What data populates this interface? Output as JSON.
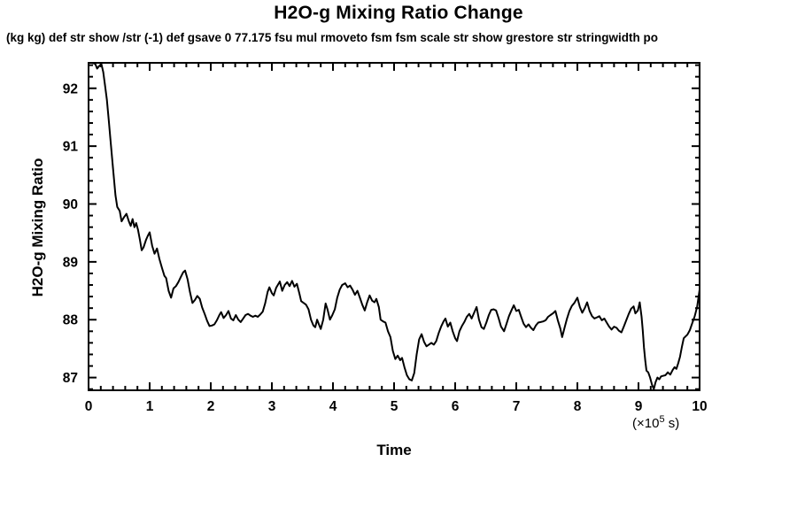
{
  "page": {
    "background": "#ffffff",
    "foreground": "#000000"
  },
  "header": {
    "title": "H2O-g Mixing Ratio Change",
    "subtitle": "(kg kg) def str show /str (-1) def gsave 0 77.175 fsu mul rmoveto fsm fsm scale str show grestore str stringwidth po"
  },
  "axes": {
    "y_title": "H2O-g Mixing Ratio",
    "x_title": "Time",
    "x_unit_prefix": "(×10",
    "x_unit_exponent": "5",
    "x_unit_suffix": " s)"
  },
  "chart_data": {
    "type": "line",
    "title": "H2O-g Mixing Ratio Change",
    "xlabel": "Time",
    "ylabel": "H2O-g Mixing Ratio",
    "x_unit": "(×10^5 s)",
    "xlim": [
      0,
      10
    ],
    "ylim": [
      86.78,
      92.44
    ],
    "x_major_ticks": [
      0,
      1,
      2,
      3,
      4,
      5,
      6,
      7,
      8,
      9,
      10
    ],
    "y_major_ticks": [
      87,
      88,
      89,
      90,
      91,
      92
    ],
    "x_minor_step": 0.2,
    "y_minor_step": 0.2,
    "grid": false,
    "legend": "none",
    "line_color": "#000000",
    "box_axes": true,
    "series": [
      {
        "name": "H2O-g mixing ratio",
        "x": [
          0.0,
          0.06,
          0.11,
          0.14,
          0.17,
          0.21,
          0.24,
          0.27,
          0.3,
          0.33,
          0.36,
          0.4,
          0.44,
          0.47,
          0.51,
          0.54,
          0.58,
          0.62,
          0.66,
          0.69,
          0.72,
          0.75,
          0.78,
          0.81,
          0.84,
          0.87,
          0.9,
          0.94,
          0.97,
          1.0,
          1.04,
          1.08,
          1.12,
          1.16,
          1.2,
          1.24,
          1.27,
          1.31,
          1.35,
          1.39,
          1.43,
          1.47,
          1.51,
          1.55,
          1.58,
          1.62,
          1.66,
          1.7,
          1.74,
          1.78,
          1.82,
          1.86,
          1.9,
          1.94,
          1.98,
          2.02,
          2.06,
          2.1,
          2.14,
          2.17,
          2.21,
          2.25,
          2.29,
          2.33,
          2.37,
          2.41,
          2.45,
          2.49,
          2.53,
          2.57,
          2.61,
          2.65,
          2.69,
          2.73,
          2.77,
          2.81,
          2.85,
          2.89,
          2.93,
          2.96,
          3.0,
          3.03,
          3.07,
          3.13,
          3.17,
          3.21,
          3.25,
          3.29,
          3.33,
          3.37,
          3.41,
          3.45,
          3.48,
          3.52,
          3.56,
          3.6,
          3.64,
          3.68,
          3.71,
          3.74,
          3.77,
          3.8,
          3.84,
          3.88,
          3.91,
          3.95,
          3.99,
          4.03,
          4.07,
          4.11,
          4.15,
          4.2,
          4.24,
          4.28,
          4.32,
          4.36,
          4.4,
          4.44,
          4.48,
          4.52,
          4.56,
          4.6,
          4.64,
          4.68,
          4.71,
          4.75,
          4.78,
          4.82,
          4.86,
          4.9,
          4.94,
          4.98,
          5.02,
          5.06,
          5.1,
          5.13,
          5.17,
          5.21,
          5.25,
          5.29,
          5.33,
          5.37,
          5.41,
          5.45,
          5.49,
          5.53,
          5.57,
          5.61,
          5.65,
          5.69,
          5.73,
          5.77,
          5.81,
          5.84,
          5.88,
          5.92,
          5.96,
          6.0,
          6.03,
          6.07,
          6.11,
          6.15,
          6.19,
          6.23,
          6.27,
          6.31,
          6.35,
          6.39,
          6.43,
          6.47,
          6.51,
          6.55,
          6.59,
          6.63,
          6.67,
          6.71,
          6.75,
          6.8,
          6.84,
          6.88,
          6.92,
          6.96,
          7.0,
          7.04,
          7.08,
          7.12,
          7.16,
          7.2,
          7.24,
          7.28,
          7.32,
          7.36,
          7.4,
          7.44,
          7.48,
          7.52,
          7.56,
          7.6,
          7.64,
          7.68,
          7.72,
          7.75,
          7.79,
          7.83,
          7.87,
          7.91,
          7.95,
          8.0,
          8.04,
          8.08,
          8.12,
          8.16,
          8.2,
          8.24,
          8.28,
          8.32,
          8.36,
          8.4,
          8.44,
          8.48,
          8.52,
          8.56,
          8.6,
          8.64,
          8.68,
          8.72,
          8.76,
          8.8,
          8.84,
          8.88,
          8.92,
          8.95,
          8.99,
          9.02,
          9.05,
          9.07,
          9.09,
          9.11,
          9.13,
          9.16,
          9.19,
          9.22,
          9.25,
          9.28,
          9.31,
          9.34,
          9.37,
          9.4,
          9.44,
          9.48,
          9.52,
          9.56,
          9.59,
          9.62,
          9.65,
          9.68,
          9.71,
          9.74,
          9.77,
          9.8,
          9.84,
          9.88,
          9.92,
          9.96,
          10.0
        ],
        "y": [
          92.44,
          92.44,
          92.42,
          92.34,
          92.38,
          92.42,
          92.28,
          92.05,
          91.8,
          91.45,
          91.1,
          90.62,
          90.15,
          89.95,
          89.88,
          89.7,
          89.77,
          89.83,
          89.7,
          89.62,
          89.74,
          89.6,
          89.67,
          89.55,
          89.38,
          89.2,
          89.25,
          89.38,
          89.45,
          89.51,
          89.28,
          89.14,
          89.23,
          89.05,
          88.9,
          88.76,
          88.72,
          88.5,
          88.38,
          88.54,
          88.58,
          88.65,
          88.74,
          88.82,
          88.85,
          88.7,
          88.48,
          88.29,
          88.34,
          88.41,
          88.36,
          88.21,
          88.1,
          87.98,
          87.89,
          87.9,
          87.92,
          87.99,
          88.08,
          88.13,
          88.03,
          88.08,
          88.15,
          88.02,
          87.99,
          88.08,
          88.0,
          87.96,
          88.02,
          88.08,
          88.1,
          88.07,
          88.05,
          88.07,
          88.05,
          88.09,
          88.14,
          88.28,
          88.48,
          88.56,
          88.46,
          88.42,
          88.55,
          88.66,
          88.5,
          88.6,
          88.65,
          88.58,
          88.67,
          88.57,
          88.62,
          88.45,
          88.32,
          88.29,
          88.26,
          88.18,
          88.0,
          87.9,
          87.87,
          88.0,
          87.92,
          87.84,
          88.0,
          88.28,
          88.18,
          88.0,
          88.08,
          88.18,
          88.38,
          88.52,
          88.6,
          88.63,
          88.56,
          88.59,
          88.52,
          88.43,
          88.5,
          88.38,
          88.26,
          88.16,
          88.3,
          88.42,
          88.33,
          88.3,
          88.36,
          88.22,
          88.0,
          87.97,
          87.95,
          87.8,
          87.7,
          87.46,
          87.32,
          87.38,
          87.3,
          87.34,
          87.18,
          87.04,
          86.97,
          86.95,
          87.08,
          87.4,
          87.66,
          87.75,
          87.62,
          87.54,
          87.57,
          87.6,
          87.57,
          87.63,
          87.77,
          87.88,
          87.97,
          88.02,
          87.88,
          87.95,
          87.8,
          87.68,
          87.63,
          87.8,
          87.89,
          87.96,
          88.05,
          88.1,
          88.02,
          88.12,
          88.22,
          88.0,
          87.87,
          87.84,
          87.95,
          88.08,
          88.17,
          88.18,
          88.16,
          88.03,
          87.88,
          87.8,
          87.93,
          88.06,
          88.16,
          88.25,
          88.15,
          88.17,
          88.05,
          87.93,
          87.87,
          87.92,
          87.86,
          87.82,
          87.9,
          87.95,
          87.96,
          87.97,
          87.99,
          88.05,
          88.08,
          88.11,
          88.15,
          87.99,
          87.85,
          87.7,
          87.86,
          88.02,
          88.15,
          88.24,
          88.29,
          88.38,
          88.22,
          88.12,
          88.2,
          88.3,
          88.15,
          88.06,
          88.02,
          88.04,
          88.06,
          87.99,
          88.02,
          87.95,
          87.88,
          87.83,
          87.88,
          87.86,
          87.81,
          87.78,
          87.88,
          87.99,
          88.1,
          88.19,
          88.23,
          88.11,
          88.16,
          88.3,
          88.05,
          87.82,
          87.52,
          87.3,
          87.12,
          87.09,
          87.0,
          86.88,
          86.8,
          86.92,
          87.0,
          86.97,
          87.02,
          87.03,
          87.04,
          87.09,
          87.05,
          87.13,
          87.18,
          87.15,
          87.25,
          87.36,
          87.53,
          87.68,
          87.71,
          87.74,
          87.82,
          87.94,
          88.06,
          88.22,
          88.52
        ]
      }
    ]
  }
}
